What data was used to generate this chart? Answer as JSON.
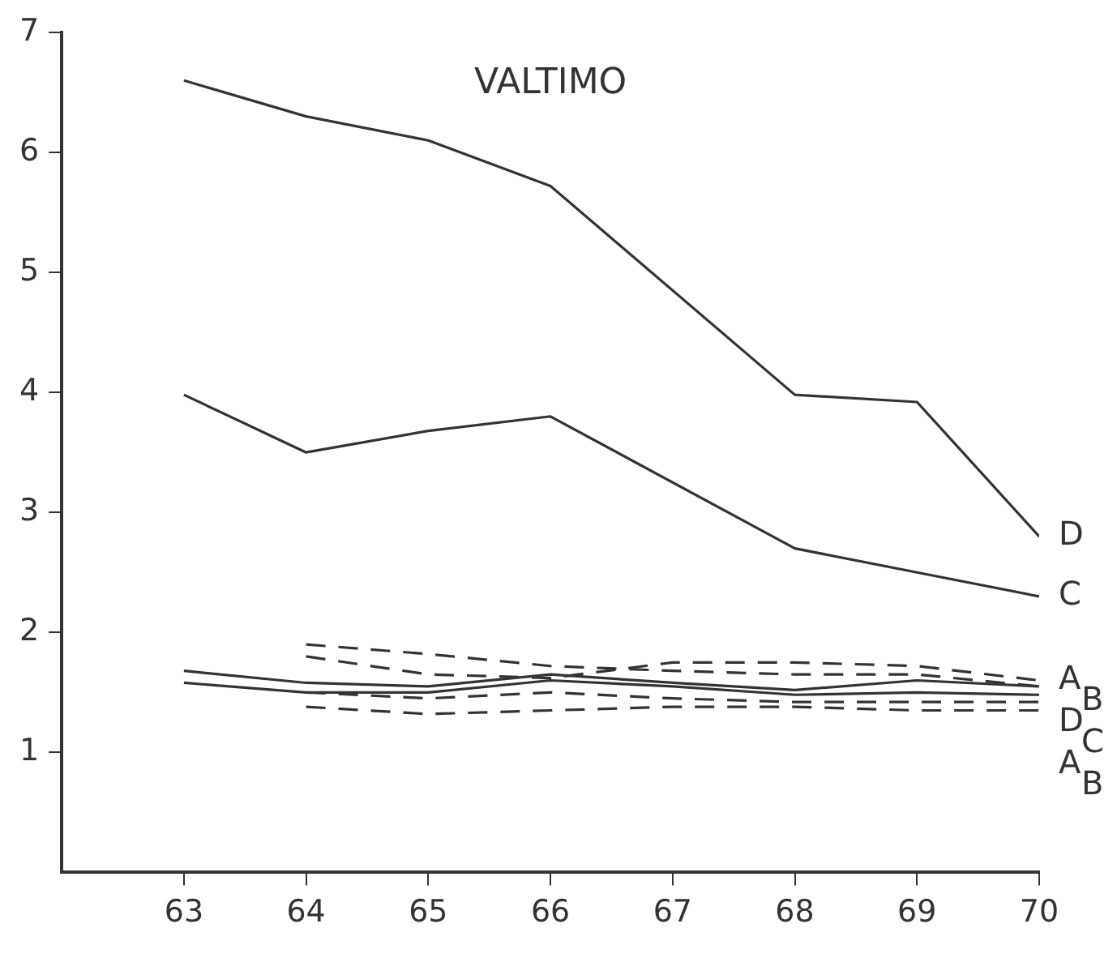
{
  "chart_data": {
    "type": "line",
    "title": "VALTIMO",
    "xlim": [
      62,
      70
    ],
    "xticks": [
      63,
      64,
      65,
      66,
      67,
      68,
      69,
      70
    ],
    "ylim": [
      0,
      7
    ],
    "yticks": [
      1,
      2,
      3,
      4,
      5,
      6,
      7
    ],
    "grid": false,
    "legend": false,
    "marker": "none",
    "line_style": "solid",
    "series": [
      {
        "name": "D",
        "color": "#333333",
        "x": [
          63,
          64,
          65,
          66,
          68,
          69,
          70
        ],
        "values": [
          6.6,
          6.3,
          6.1,
          5.72,
          3.98,
          3.92,
          2.8
        ]
      },
      {
        "name": "C",
        "color": "#333333",
        "x": [
          63,
          64,
          65,
          66,
          68,
          69,
          70
        ],
        "values": [
          3.98,
          3.5,
          3.68,
          3.8,
          2.7,
          2.5,
          2.3
        ]
      },
      {
        "name": "B",
        "color": "#333333",
        "line_style": "dashed",
        "x": [
          64,
          65,
          66,
          67,
          68,
          69,
          70
        ],
        "values": [
          1.9,
          1.82,
          1.72,
          1.68,
          1.65,
          1.65,
          1.55
        ]
      },
      {
        "name": "A",
        "color": "#333333",
        "line_style": "dashed",
        "x": [
          64,
          65,
          66,
          67,
          68,
          69,
          70
        ],
        "values": [
          1.8,
          1.65,
          1.62,
          1.75,
          1.75,
          1.72,
          1.6
        ]
      },
      {
        "name": "D",
        "color": "#333333",
        "x": [
          63,
          64,
          65,
          66,
          67,
          68,
          69,
          70
        ],
        "values": [
          1.68,
          1.58,
          1.55,
          1.65,
          1.58,
          1.52,
          1.6,
          1.55
        ]
      },
      {
        "name": "C",
        "color": "#333333",
        "x": [
          63,
          64,
          65,
          66,
          67,
          68,
          69,
          70
        ],
        "values": [
          1.58,
          1.5,
          1.5,
          1.6,
          1.55,
          1.48,
          1.5,
          1.48
        ]
      },
      {
        "name": "A",
        "color": "#333333",
        "line_style": "dashed",
        "x": [
          64,
          65,
          66,
          67,
          68,
          69,
          70
        ],
        "values": [
          1.5,
          1.45,
          1.5,
          1.45,
          1.42,
          1.42,
          1.42
        ]
      },
      {
        "name": "B",
        "color": "#333333",
        "line_style": "dashed",
        "x": [
          64,
          65,
          66,
          67,
          68,
          69,
          70
        ],
        "values": [
          1.38,
          1.32,
          1.35,
          1.38,
          1.38,
          1.35,
          1.35
        ]
      }
    ]
  }
}
